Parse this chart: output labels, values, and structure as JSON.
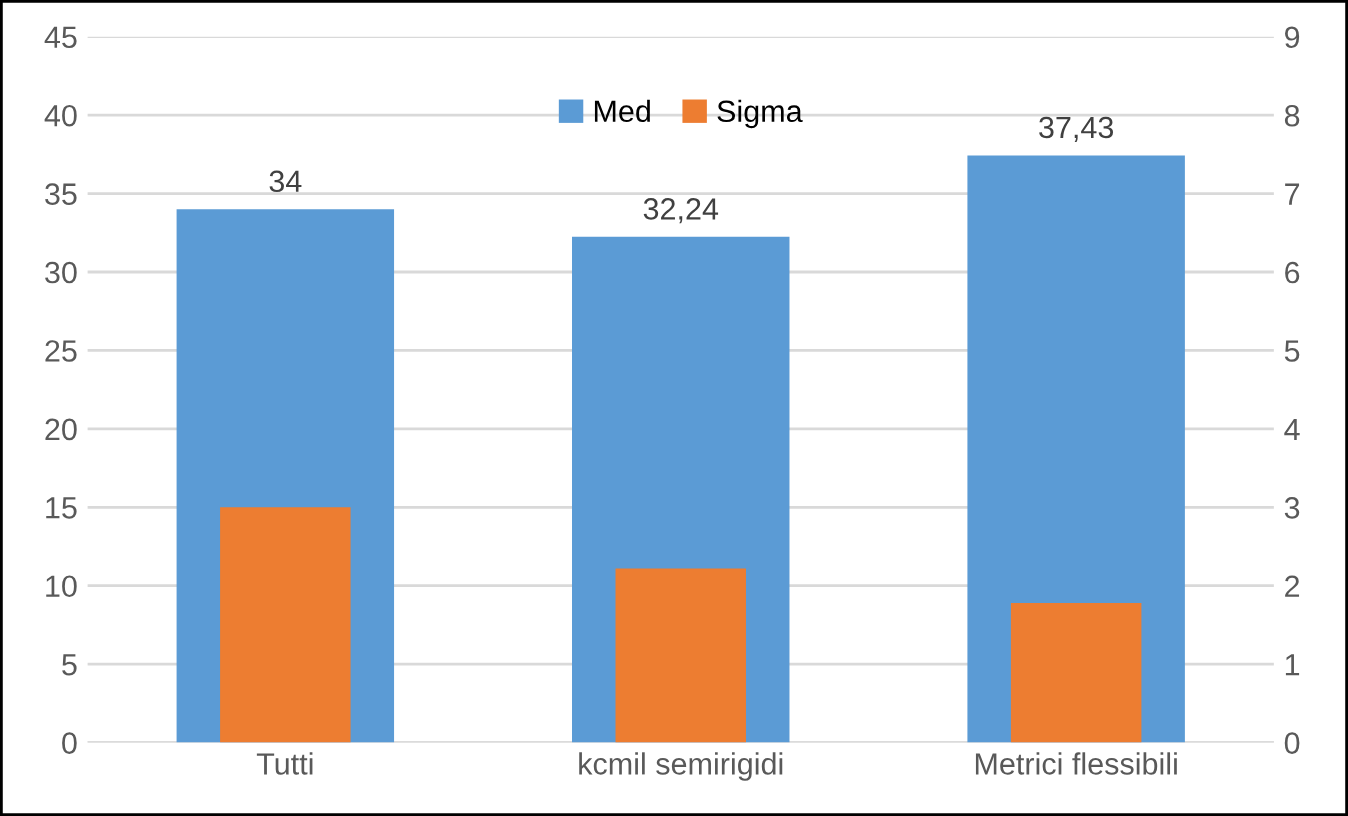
{
  "chart_data": {
    "type": "bar",
    "categories": [
      "Tutti",
      "kcmil semirigidi",
      "Metrici flessibili"
    ],
    "series": [
      {
        "name": "Med",
        "color": "#5b9bd5",
        "values": [
          34,
          32.24,
          37.43
        ],
        "value_labels": [
          "34",
          "32,24",
          "37,43"
        ]
      },
      {
        "name": "Sigma",
        "color": "#ed7d31",
        "values": [
          3.0,
          2.22,
          1.78
        ],
        "axis": "y2"
      }
    ],
    "ylim": [
      0,
      45
    ],
    "yticks": [
      0,
      5,
      10,
      15,
      20,
      25,
      30,
      35,
      40,
      45
    ],
    "y2lim": [
      0,
      9
    ],
    "y2ticks": [
      0,
      1,
      2,
      3,
      4,
      5,
      6,
      7,
      8,
      9
    ],
    "grid": "y",
    "legend": "top"
  }
}
